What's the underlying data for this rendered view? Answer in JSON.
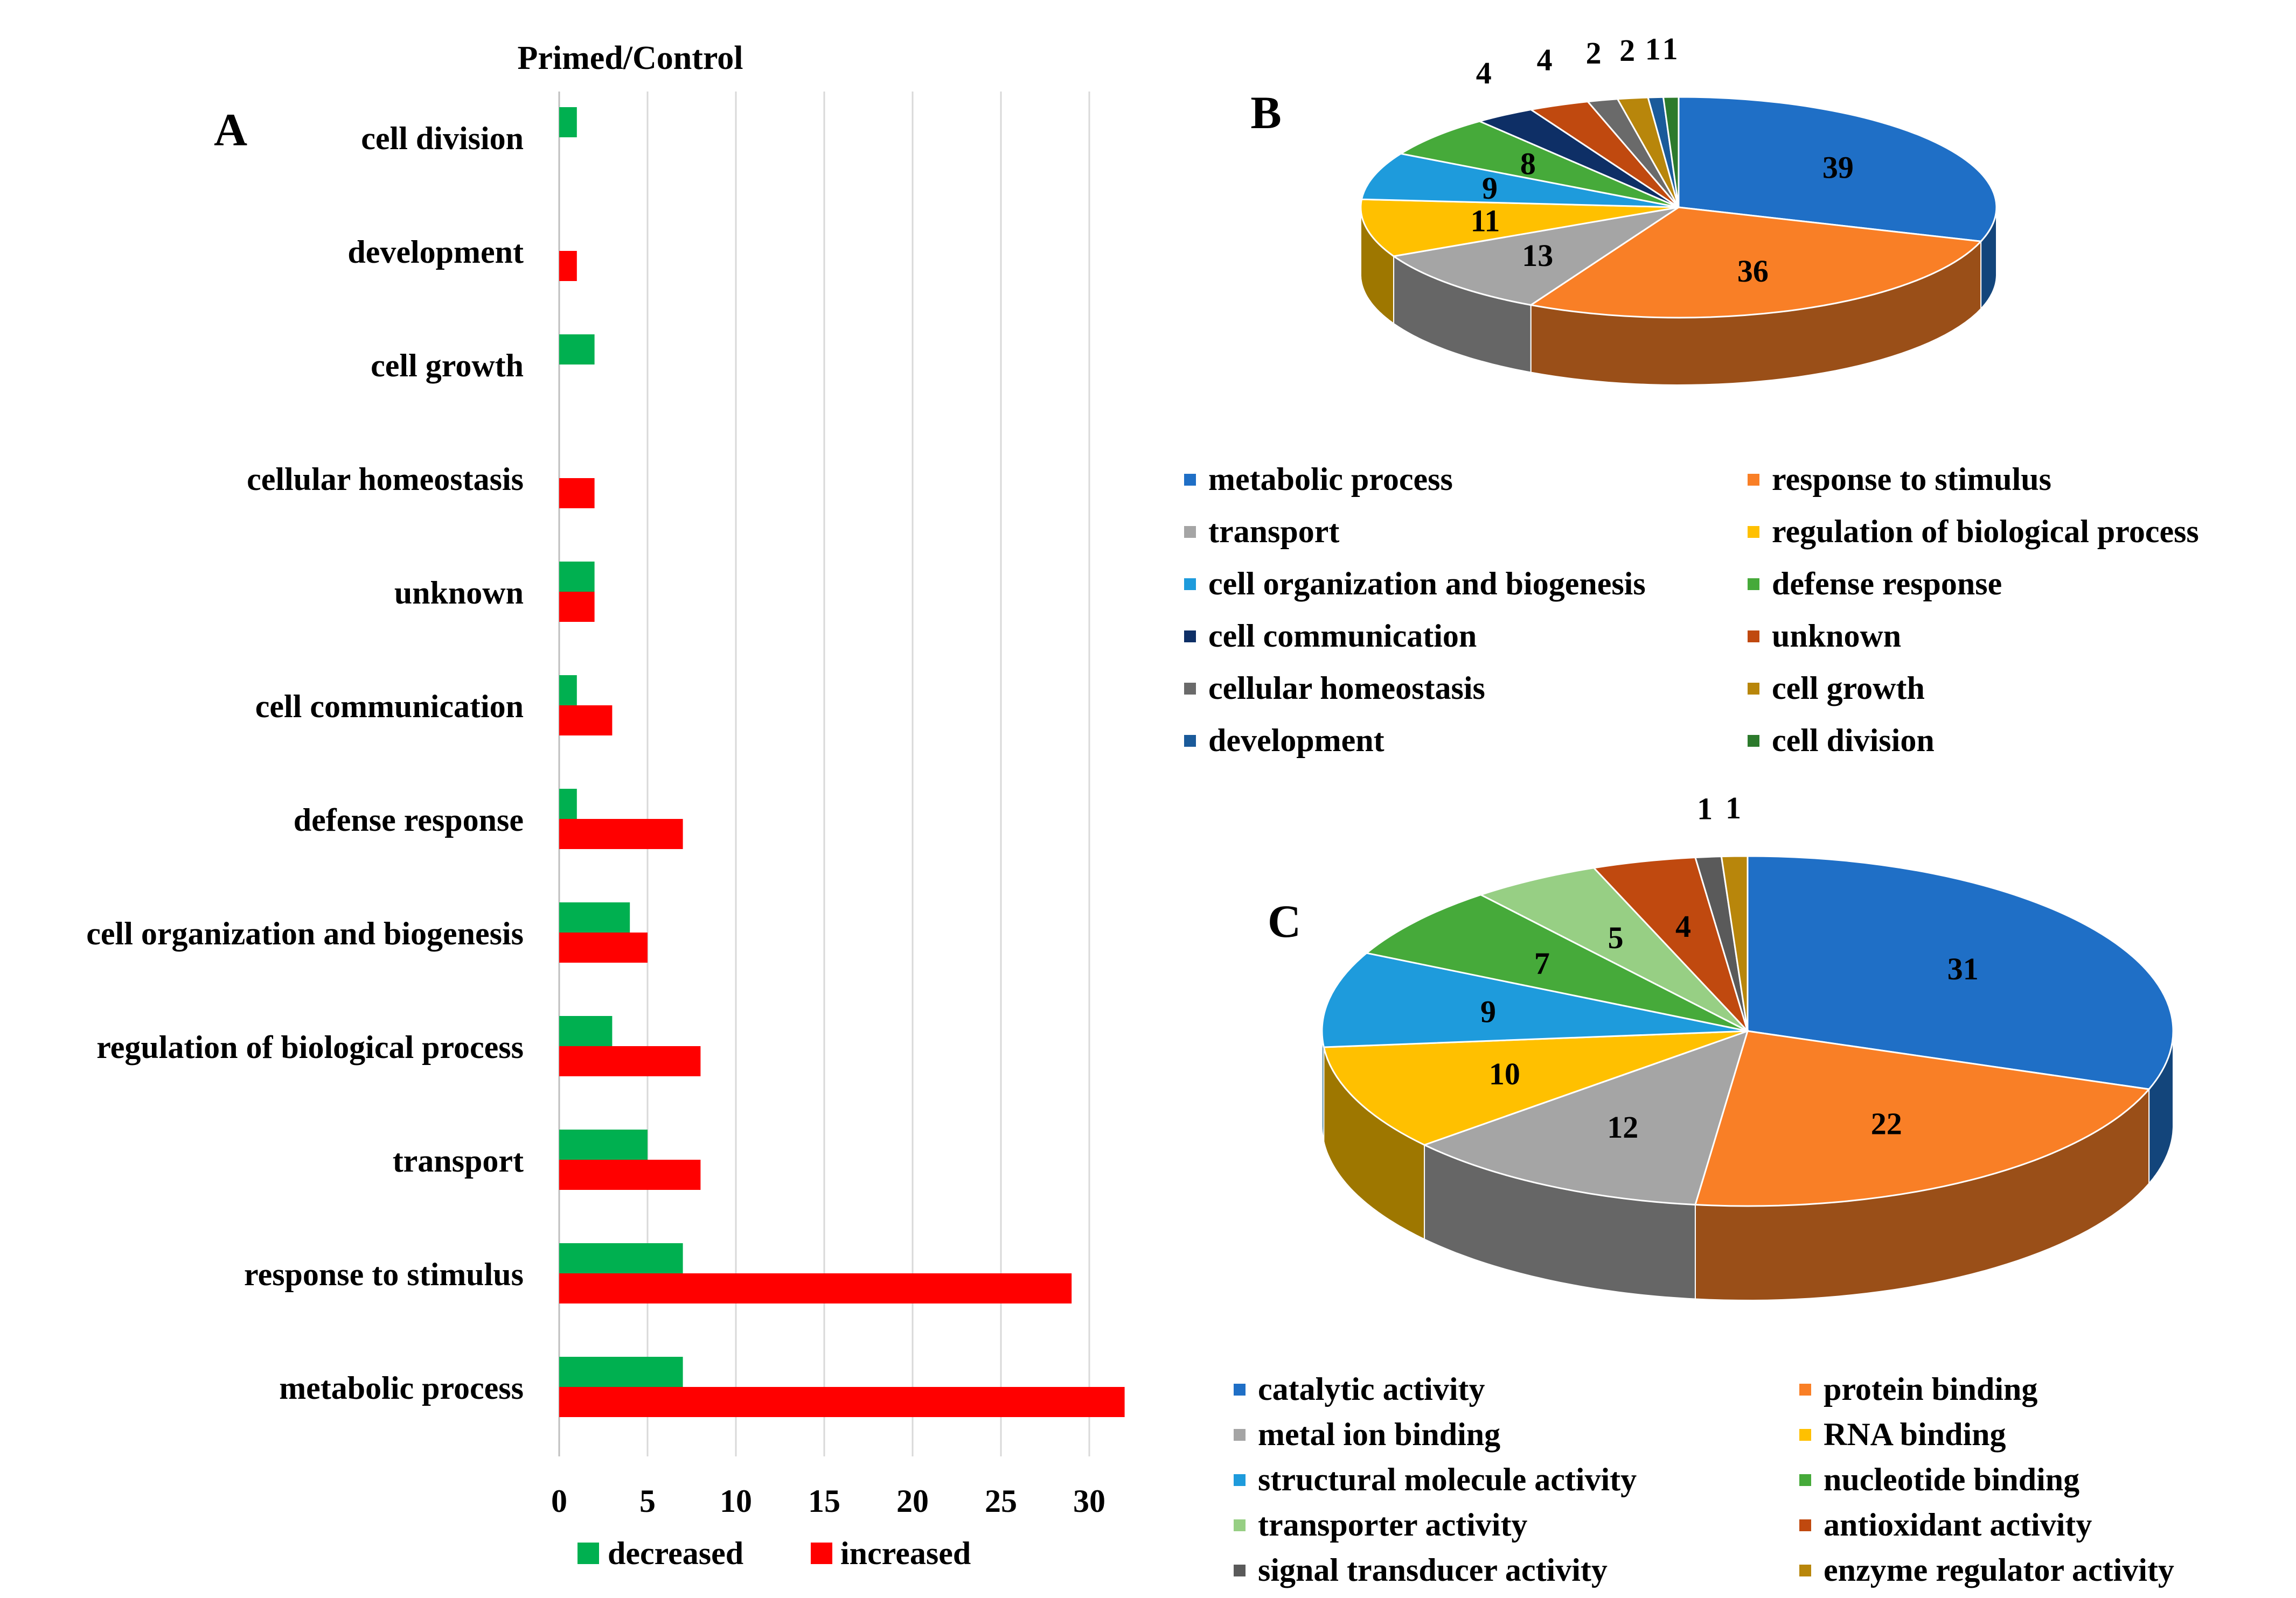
{
  "panels": {
    "a_letter": "A",
    "b_letter": "B",
    "c_letter": "C"
  },
  "colors": {
    "decreased": "#00b050",
    "increased": "#ff0000",
    "gridline": "#d9d9d9"
  },
  "chart_data": [
    {
      "type": "bar",
      "orientation": "horizontal",
      "title": "Primed/Control",
      "categories": [
        "cell division",
        "development",
        "cell growth",
        "cellular homeostasis",
        "unknown",
        "cell communication",
        "defense response",
        "cell organization and biogenesis",
        "regulation of biological process",
        "transport",
        "response to stimulus",
        "metabolic process"
      ],
      "series": [
        {
          "name": "decreased",
          "color": "#00b050",
          "values": [
            1,
            0,
            2,
            0,
            2,
            1,
            1,
            4,
            3,
            5,
            7,
            7
          ]
        },
        {
          "name": "increased",
          "color": "#ff0000",
          "values": [
            0,
            1,
            0,
            2,
            2,
            3,
            7,
            5,
            8,
            8,
            29,
            32
          ]
        }
      ],
      "xlim": [
        0,
        32
      ],
      "xticks": [
        0,
        5,
        10,
        15,
        20,
        25,
        30
      ],
      "grid": true,
      "legend_position": "bottom"
    },
    {
      "type": "pie",
      "style": "3d",
      "labels": [
        "metabolic process",
        "response to stimulus",
        "transport",
        "regulation of biological process",
        "cell organization and biogenesis",
        "defense response",
        "cell communication",
        "unknown",
        "cellular homeostasis",
        "cell growth",
        "development",
        "cell division"
      ],
      "values": [
        39,
        36,
        13,
        11,
        9,
        8,
        4,
        4,
        2,
        2,
        1,
        1
      ],
      "colors": [
        "#1f6fc6",
        "#f97f26",
        "#a5a5a5",
        "#ffc000",
        "#1e9bdc",
        "#46aa3a",
        "#0e2f66",
        "#c0490f",
        "#6a6a6a",
        "#b8860b",
        "#1a5a9a",
        "#2c7a2c"
      ],
      "legend_position": "bottom",
      "legend_columns": 2
    },
    {
      "type": "pie",
      "style": "3d",
      "labels": [
        "catalytic activity",
        "protein binding",
        "metal ion binding",
        "RNA binding",
        "structural molecule activity",
        "nucleotide binding",
        "transporter activity",
        "antioxidant activity",
        "signal transducer activity",
        "enzyme regulator activity"
      ],
      "values": [
        31,
        22,
        12,
        10,
        9,
        7,
        5,
        4,
        1,
        1
      ],
      "colors": [
        "#1f6fc6",
        "#f97f26",
        "#a5a5a5",
        "#ffc000",
        "#1e9bdc",
        "#46aa3a",
        "#97cf84",
        "#c0490f",
        "#5a5a5a",
        "#b8860b"
      ],
      "legend_position": "bottom",
      "legend_columns": 2
    }
  ]
}
